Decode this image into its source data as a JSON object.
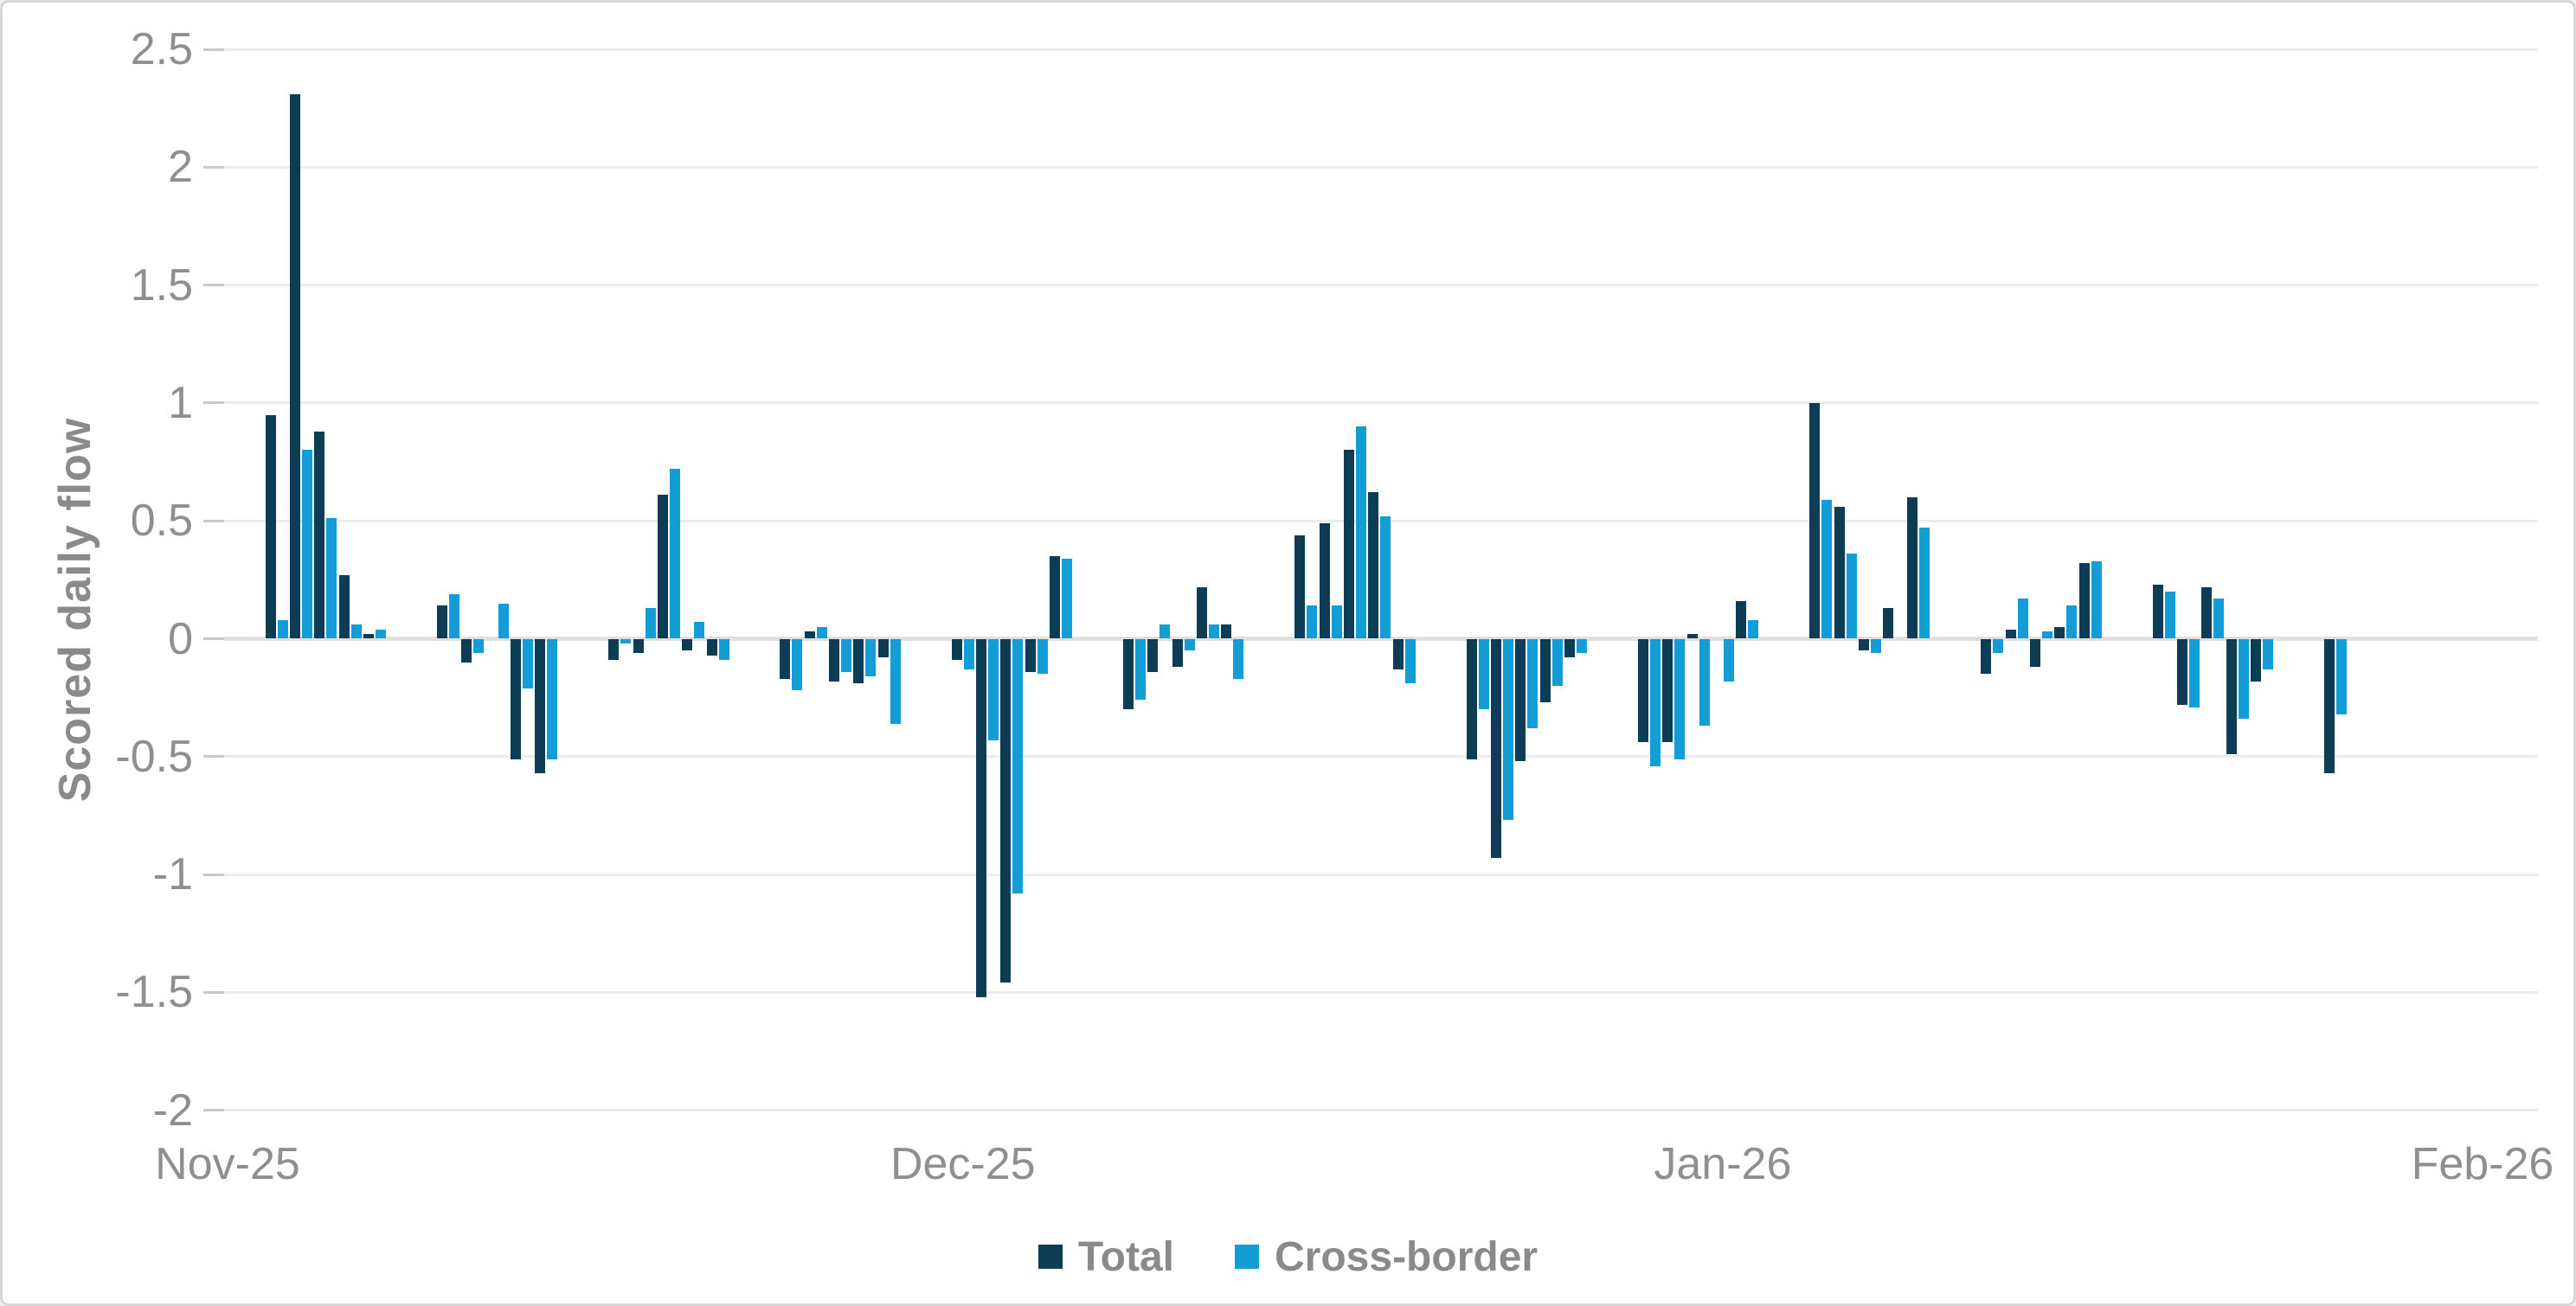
{
  "chart_data": {
    "type": "bar",
    "title": "",
    "xlabel": "",
    "ylabel": "Scored daily flow",
    "ylim": [
      -2,
      2.5
    ],
    "grid": true,
    "legend_position": "bottom",
    "y_ticks": [
      {
        "value": 2.5,
        "label": "2.5"
      },
      {
        "value": 2,
        "label": "2"
      },
      {
        "value": 1.5,
        "label": "1.5"
      },
      {
        "value": 1,
        "label": "1"
      },
      {
        "value": 0.5,
        "label": "0.5"
      },
      {
        "value": 0,
        "label": "0"
      },
      {
        "value": -0.5,
        "label": "-0.5"
      },
      {
        "value": -1,
        "label": "-1"
      },
      {
        "value": -1.5,
        "label": "-1.5"
      },
      {
        "value": -2,
        "label": "-2"
      }
    ],
    "x_ticks": [
      {
        "label": "Nov-25",
        "day_offset": 0
      },
      {
        "label": "Dec-25",
        "day_offset": 30
      },
      {
        "label": "Jan-26",
        "day_offset": 61
      },
      {
        "label": "Feb-26",
        "day_offset": 92
      }
    ],
    "series": [
      {
        "name": "Total",
        "key": "total",
        "color": "#0d3d55"
      },
      {
        "name": "Cross-border",
        "key": "cross_border",
        "color": "#129dd6"
      }
    ],
    "points": [
      {
        "date": "2025-11-03",
        "total": 0.95,
        "cross_border": 0.08
      },
      {
        "date": "2025-11-04",
        "total": 2.31,
        "cross_border": 0.8
      },
      {
        "date": "2025-11-05",
        "total": 0.88,
        "cross_border": 0.51
      },
      {
        "date": "2025-11-06",
        "total": 0.27,
        "cross_border": 0.06
      },
      {
        "date": "2025-11-07",
        "total": 0.02,
        "cross_border": 0.04
      },
      {
        "date": "2025-11-10",
        "total": 0.14,
        "cross_border": 0.19
      },
      {
        "date": "2025-11-11",
        "total": -0.1,
        "cross_border": -0.06
      },
      {
        "date": "2025-11-12",
        "total": 0.0,
        "cross_border": 0.15
      },
      {
        "date": "2025-11-13",
        "total": -0.51,
        "cross_border": -0.21
      },
      {
        "date": "2025-11-14",
        "total": -0.57,
        "cross_border": -0.51
      },
      {
        "date": "2025-11-17",
        "total": -0.09,
        "cross_border": -0.02
      },
      {
        "date": "2025-11-18",
        "total": -0.06,
        "cross_border": 0.13
      },
      {
        "date": "2025-11-19",
        "total": 0.61,
        "cross_border": 0.72
      },
      {
        "date": "2025-11-20",
        "total": -0.05,
        "cross_border": 0.07
      },
      {
        "date": "2025-11-21",
        "total": -0.07,
        "cross_border": -0.09
      },
      {
        "date": "2025-11-24",
        "total": -0.17,
        "cross_border": -0.22
      },
      {
        "date": "2025-11-25",
        "total": 0.03,
        "cross_border": 0.05
      },
      {
        "date": "2025-11-26",
        "total": -0.18,
        "cross_border": -0.14
      },
      {
        "date": "2025-11-27",
        "total": -0.19,
        "cross_border": -0.16
      },
      {
        "date": "2025-11-28",
        "total": -0.08,
        "cross_border": -0.36
      },
      {
        "date": "2025-12-01",
        "total": -0.09,
        "cross_border": -0.13
      },
      {
        "date": "2025-12-02",
        "total": -1.52,
        "cross_border": -0.43
      },
      {
        "date": "2025-12-03",
        "total": -1.46,
        "cross_border": -1.08
      },
      {
        "date": "2025-12-04",
        "total": -0.14,
        "cross_border": -0.15
      },
      {
        "date": "2025-12-05",
        "total": 0.35,
        "cross_border": 0.34
      },
      {
        "date": "2025-12-08",
        "total": -0.3,
        "cross_border": -0.26
      },
      {
        "date": "2025-12-09",
        "total": -0.14,
        "cross_border": 0.06
      },
      {
        "date": "2025-12-10",
        "total": -0.12,
        "cross_border": -0.05
      },
      {
        "date": "2025-12-11",
        "total": 0.22,
        "cross_border": 0.06
      },
      {
        "date": "2025-12-12",
        "total": 0.06,
        "cross_border": -0.17
      },
      {
        "date": "2025-12-15",
        "total": 0.44,
        "cross_border": 0.14
      },
      {
        "date": "2025-12-16",
        "total": 0.49,
        "cross_border": 0.14
      },
      {
        "date": "2025-12-17",
        "total": 0.8,
        "cross_border": 0.9
      },
      {
        "date": "2025-12-18",
        "total": 0.62,
        "cross_border": 0.52
      },
      {
        "date": "2025-12-19",
        "total": -0.13,
        "cross_border": -0.19
      },
      {
        "date": "2025-12-22",
        "total": -0.51,
        "cross_border": -0.3
      },
      {
        "date": "2025-12-23",
        "total": -0.93,
        "cross_border": -0.77
      },
      {
        "date": "2025-12-24",
        "total": -0.52,
        "cross_border": -0.38
      },
      {
        "date": "2025-12-25",
        "total": -0.27,
        "cross_border": -0.2
      },
      {
        "date": "2025-12-26",
        "total": -0.08,
        "cross_border": -0.06
      },
      {
        "date": "2025-12-29",
        "total": -0.44,
        "cross_border": -0.54
      },
      {
        "date": "2025-12-30",
        "total": -0.44,
        "cross_border": -0.51
      },
      {
        "date": "2025-12-31",
        "total": 0.02,
        "cross_border": -0.37
      },
      {
        "date": "2026-01-01",
        "total": 0.0,
        "cross_border": -0.18
      },
      {
        "date": "2026-01-02",
        "total": 0.16,
        "cross_border": 0.08
      },
      {
        "date": "2026-01-05",
        "total": 1.0,
        "cross_border": 0.59
      },
      {
        "date": "2026-01-06",
        "total": 0.56,
        "cross_border": 0.36
      },
      {
        "date": "2026-01-07",
        "total": -0.05,
        "cross_border": -0.06
      },
      {
        "date": "2026-01-08",
        "total": 0.13,
        "cross_border": 0.0
      },
      {
        "date": "2026-01-09",
        "total": 0.6,
        "cross_border": 0.47
      },
      {
        "date": "2026-01-12",
        "total": -0.15,
        "cross_border": -0.06
      },
      {
        "date": "2026-01-13",
        "total": 0.04,
        "cross_border": 0.17
      },
      {
        "date": "2026-01-14",
        "total": -0.12,
        "cross_border": 0.03
      },
      {
        "date": "2026-01-15",
        "total": 0.05,
        "cross_border": 0.14
      },
      {
        "date": "2026-01-16",
        "total": 0.32,
        "cross_border": 0.33
      },
      {
        "date": "2026-01-19",
        "total": 0.23,
        "cross_border": 0.2
      },
      {
        "date": "2026-01-20",
        "total": -0.28,
        "cross_border": -0.29
      },
      {
        "date": "2026-01-21",
        "total": 0.22,
        "cross_border": 0.17
      },
      {
        "date": "2026-01-22",
        "total": -0.49,
        "cross_border": -0.34
      },
      {
        "date": "2026-01-23",
        "total": -0.18,
        "cross_border": -0.13
      },
      {
        "date": "2026-01-26",
        "total": -0.57,
        "cross_border": -0.32
      }
    ],
    "colors": {
      "total": "#0d3d55",
      "cross_border": "#129dd6",
      "axis_text": "#8f8f8f",
      "gridline": "#ececec",
      "zero_line": "#e0e0e0",
      "frame_border": "#d7d7d7"
    }
  }
}
